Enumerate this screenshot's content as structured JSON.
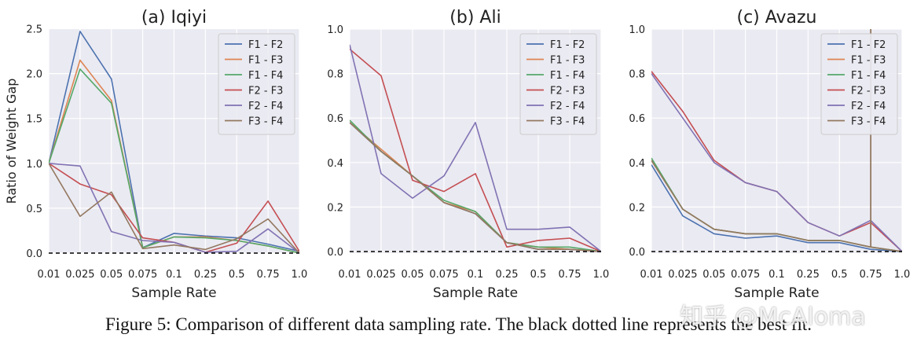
{
  "caption": "Figure 5: Comparison of different data sampling rate. The black dotted line represents the best fit.",
  "watermark": "知乎 @McAloma",
  "colors": {
    "F1 - F2": "#4c72b0",
    "F1 - F3": "#dd8452",
    "F1 - F4": "#55a868",
    "F2 - F3": "#c44e52",
    "F2 - F4": "#8172b3",
    "F3 - F4": "#937860",
    "background": "#eaeaf2",
    "best_fit": "#000000"
  },
  "chart_data": [
    {
      "type": "line",
      "title": "(a) Iqiyi",
      "xlabel": "Sample Rate",
      "ylabel": "Ratio of Weight Gap",
      "categories": [
        "0.01",
        "0.025",
        "0.05",
        "0.075",
        "0.1",
        "0.25",
        "0.5",
        "0.75",
        "1.0"
      ],
      "ylim": [
        -0.1,
        2.5
      ],
      "yticks": [
        "0.0",
        "0.5",
        "1.0",
        "1.5",
        "2.0",
        "2.5"
      ],
      "ytick_values": [
        0,
        0.5,
        1.0,
        1.5,
        2.0,
        2.5
      ],
      "best_fit": 0,
      "legend": "top-right",
      "series": [
        {
          "name": "F1 - F2",
          "values": [
            1.0,
            2.47,
            1.94,
            0.06,
            0.22,
            0.19,
            0.17,
            0.1,
            0.02
          ]
        },
        {
          "name": "F1 - F3",
          "values": [
            1.0,
            2.15,
            1.7,
            0.06,
            0.18,
            0.18,
            0.14,
            0.08,
            0.0
          ]
        },
        {
          "name": "F1 - F4",
          "values": [
            1.0,
            2.05,
            1.67,
            0.06,
            0.18,
            0.17,
            0.14,
            0.08,
            0.0
          ]
        },
        {
          "name": "F2 - F3",
          "values": [
            1.0,
            0.77,
            0.65,
            0.17,
            0.12,
            0.01,
            0.11,
            0.58,
            0.02
          ]
        },
        {
          "name": "F2 - F4",
          "values": [
            1.0,
            0.97,
            0.24,
            0.14,
            0.12,
            0.01,
            0.02,
            0.27,
            0.0
          ]
        },
        {
          "name": "F3 - F4",
          "values": [
            1.0,
            0.41,
            0.68,
            0.05,
            0.09,
            0.04,
            0.16,
            0.38,
            0.0
          ]
        }
      ]
    },
    {
      "type": "line",
      "title": "(b) Ali",
      "xlabel": "Sample Rate",
      "ylabel": "",
      "categories": [
        "0.01",
        "0.025",
        "0.05",
        "0.075",
        "0.1",
        "0.25",
        "0.5",
        "0.75",
        "1.0"
      ],
      "ylim": [
        -0.04,
        1.0
      ],
      "yticks": [
        "0.0",
        "0.2",
        "0.4",
        "0.6",
        "0.8",
        "1.0"
      ],
      "ytick_values": [
        0,
        0.2,
        0.4,
        0.6,
        0.8,
        1.0
      ],
      "best_fit": 0,
      "legend": "top-right",
      "series": [
        {
          "name": "F1 - F2",
          "values": [
            0.58,
            0.45,
            0.34,
            0.22,
            0.17,
            0.04,
            0.01,
            0.01,
            0.0
          ]
        },
        {
          "name": "F1 - F3",
          "values": [
            0.58,
            0.46,
            0.34,
            0.22,
            0.18,
            0.04,
            0.02,
            0.01,
            0.0
          ]
        },
        {
          "name": "F1 - F4",
          "values": [
            0.59,
            0.45,
            0.34,
            0.23,
            0.18,
            0.04,
            0.02,
            0.02,
            0.0
          ]
        },
        {
          "name": "F2 - F3",
          "values": [
            0.91,
            0.79,
            0.32,
            0.27,
            0.35,
            0.02,
            0.05,
            0.06,
            0.0
          ]
        },
        {
          "name": "F2 - F4",
          "values": [
            0.93,
            0.35,
            0.24,
            0.34,
            0.58,
            0.1,
            0.1,
            0.11,
            0.0
          ]
        },
        {
          "name": "F3 - F4",
          "values": [
            0.58,
            0.45,
            0.34,
            0.22,
            0.17,
            0.04,
            0.01,
            0.01,
            0.0
          ]
        }
      ]
    },
    {
      "type": "line",
      "title": "(c) Avazu",
      "xlabel": "Sample Rate",
      "ylabel": "",
      "categories": [
        "0.01",
        "0.025",
        "0.05",
        "0.075",
        "0.1",
        "0.25",
        "0.5",
        "0.75",
        "1.0"
      ],
      "ylim": [
        -0.04,
        1.0
      ],
      "yticks": [
        "0.0",
        "0.2",
        "0.4",
        "0.6",
        "0.8",
        "1.0"
      ],
      "ytick_values": [
        0,
        0.2,
        0.4,
        0.6,
        0.8,
        1.0
      ],
      "best_fit": 0,
      "legend": "top-right",
      "series": [
        {
          "name": "F1 - F2",
          "values": [
            0.39,
            0.16,
            0.08,
            0.06,
            0.07,
            0.04,
            0.04,
            0.01,
            0.0
          ]
        },
        {
          "name": "F1 - F3",
          "values": [
            0.41,
            0.19,
            0.1,
            0.08,
            0.08,
            0.05,
            0.05,
            0.02,
            0.0
          ]
        },
        {
          "name": "F1 - F4",
          "values": [
            0.42,
            0.19,
            0.1,
            0.08,
            0.08,
            0.05,
            0.05,
            0.02,
            0.0
          ]
        },
        {
          "name": "F2 - F3",
          "values": [
            0.81,
            0.63,
            0.41,
            0.31,
            0.27,
            0.13,
            0.07,
            0.13,
            0.0
          ]
        },
        {
          "name": "F2 - F4",
          "values": [
            0.8,
            0.6,
            0.4,
            0.31,
            0.27,
            0.13,
            0.07,
            0.14,
            0.0
          ]
        },
        {
          "name": "F3 - F4",
          "values": [
            0.41,
            0.19,
            0.1,
            0.08,
            0.08,
            0.05,
            0.05,
            0.02,
            0.0
          ]
        }
      ],
      "spike": {
        "series": "F3 - F4",
        "at": "0.75",
        "to": 1.0
      }
    }
  ]
}
